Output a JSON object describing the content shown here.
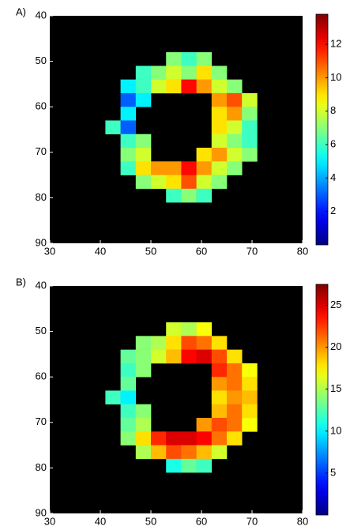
{
  "chart_data": [
    {
      "type": "heatmap",
      "panel_label": "A)",
      "colormap": "jet",
      "background": "#000000",
      "x": [
        42.5,
        45.5,
        48.5,
        51.5,
        54.5,
        57.5,
        60.5,
        63.5,
        66.5,
        69.5
      ],
      "y": [
        49.5,
        52.5,
        55.5,
        58.5,
        61.5,
        64.5,
        67.5,
        70.5,
        73.5,
        76.5,
        79.5
      ],
      "z": [
        [
          null,
          null,
          null,
          null,
          7,
          6,
          7,
          null,
          null,
          null
        ],
        [
          null,
          null,
          6,
          7,
          8,
          7,
          9,
          7,
          null,
          null
        ],
        [
          null,
          5,
          6,
          8,
          9,
          12,
          10,
          8,
          7,
          null
        ],
        [
          null,
          3,
          5,
          null,
          null,
          null,
          null,
          10,
          11,
          8
        ],
        [
          null,
          5,
          null,
          null,
          null,
          null,
          null,
          9,
          10,
          7
        ],
        [
          6,
          3,
          null,
          null,
          null,
          null,
          null,
          9,
          8,
          6
        ],
        [
          null,
          6,
          7,
          null,
          null,
          null,
          null,
          8,
          7,
          6
        ],
        [
          null,
          7,
          8,
          null,
          null,
          null,
          9,
          10,
          8,
          7
        ],
        [
          null,
          6,
          9,
          10,
          10,
          12,
          10,
          8,
          7,
          null
        ],
        [
          null,
          null,
          7,
          8,
          9,
          11,
          8,
          7,
          null,
          null
        ],
        [
          null,
          null,
          null,
          null,
          6,
          7,
          6,
          null,
          null,
          null
        ]
      ],
      "xlim": [
        30,
        80
      ],
      "xticks": [
        30,
        40,
        50,
        60,
        70,
        80
      ],
      "ylim": [
        90,
        40
      ],
      "yticks": [
        40,
        50,
        60,
        70,
        80,
        90
      ],
      "clim": [
        0,
        13.8
      ],
      "cticks": [
        2,
        4,
        6,
        8,
        10,
        12
      ]
    },
    {
      "type": "heatmap",
      "panel_label": "B)",
      "colormap": "jet",
      "background": "#000000",
      "x": [
        42.5,
        45.5,
        48.5,
        51.5,
        54.5,
        57.5,
        60.5,
        63.5,
        66.5,
        69.5
      ],
      "y": [
        49.5,
        52.5,
        55.5,
        58.5,
        61.5,
        64.5,
        67.5,
        70.5,
        73.5,
        76.5,
        79.5
      ],
      "z": [
        [
          null,
          null,
          null,
          null,
          16,
          15,
          17,
          null,
          null,
          null
        ],
        [
          null,
          null,
          14,
          15,
          18,
          22,
          21,
          18,
          null,
          null
        ],
        [
          null,
          13,
          14,
          16,
          19,
          24,
          25,
          22,
          18,
          null
        ],
        [
          null,
          12,
          14,
          null,
          null,
          null,
          null,
          23,
          21,
          17
        ],
        [
          null,
          13,
          null,
          null,
          null,
          null,
          null,
          20,
          21,
          18
        ],
        [
          12,
          10,
          null,
          null,
          null,
          null,
          null,
          18,
          20,
          19
        ],
        [
          null,
          12,
          14,
          null,
          null,
          null,
          null,
          19,
          21,
          18
        ],
        [
          null,
          13,
          15,
          null,
          null,
          null,
          20,
          22,
          21,
          17
        ],
        [
          null,
          14,
          18,
          23,
          25,
          25,
          24,
          21,
          18,
          null
        ],
        [
          null,
          null,
          15,
          19,
          22,
          21,
          19,
          16,
          null,
          null
        ],
        [
          null,
          null,
          null,
          null,
          11,
          13,
          12,
          null,
          null,
          null
        ]
      ],
      "xlim": [
        30,
        80
      ],
      "xticks": [
        30,
        40,
        50,
        60,
        70,
        80
      ],
      "ylim": [
        90,
        40
      ],
      "yticks": [
        40,
        50,
        60,
        70,
        80,
        90
      ],
      "clim": [
        0,
        27.5
      ],
      "cticks": [
        5,
        10,
        15,
        20,
        25
      ]
    }
  ]
}
